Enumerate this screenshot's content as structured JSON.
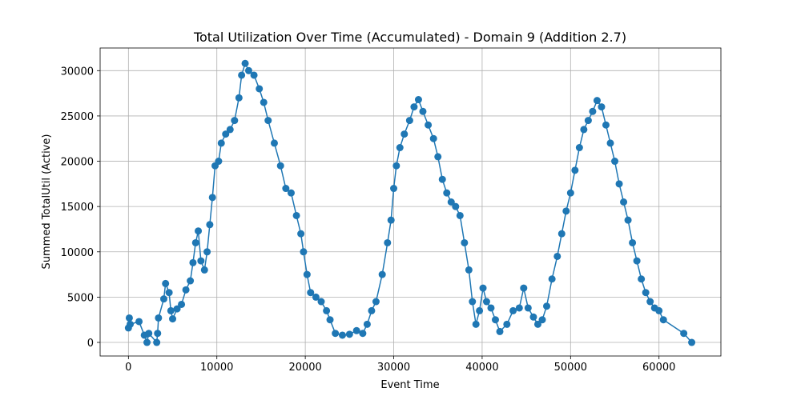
{
  "chart_data": {
    "type": "line",
    "title": "Total Utilization Over Time (Accumulated) - Domain 9 (Addition 2.7)",
    "xlabel": "Event Time",
    "ylabel": "Summed TotalUtil (Active)",
    "x": [
      0,
      100,
      200,
      1200,
      1800,
      2100,
      2300,
      3200,
      3300,
      3400,
      4000,
      4200,
      4600,
      4800,
      5000,
      5500,
      6000,
      6500,
      7000,
      7300,
      7600,
      7900,
      8200,
      8600,
      8900,
      9200,
      9500,
      9800,
      10200,
      10500,
      11000,
      11500,
      12000,
      12500,
      12800,
      13200,
      13600,
      14200,
      14800,
      15300,
      15800,
      16500,
      17200,
      17800,
      18400,
      19000,
      19500,
      19800,
      20200,
      20600,
      21200,
      21800,
      22400,
      22800,
      23400,
      24200,
      25000,
      25800,
      26500,
      27000,
      27500,
      28000,
      28700,
      29300,
      29700,
      30000,
      30300,
      30700,
      31200,
      31800,
      32300,
      32800,
      33300,
      33900,
      34500,
      35000,
      35500,
      36000,
      36500,
      37000,
      37500,
      38000,
      38500,
      38900,
      39300,
      39700,
      40100,
      40500,
      41000,
      41500,
      42000,
      42800,
      43500,
      44200,
      44700,
      45200,
      45800,
      46300,
      46800,
      47300,
      47900,
      48500,
      49000,
      49500,
      50000,
      50500,
      51000,
      51500,
      52000,
      52500,
      53000,
      53500,
      54000,
      54500,
      55000,
      55500,
      56000,
      56500,
      57000,
      57500,
      58000,
      58500,
      59000,
      59500,
      60000,
      60500,
      62800,
      63700
    ],
    "series": [
      {
        "name": "Summed TotalUtil (Active)",
        "color": "#1f77b4",
        "values": [
          1600,
          2700,
          2000,
          2300,
          800,
          0,
          1000,
          0,
          1000,
          2700,
          4800,
          6500,
          5500,
          3500,
          2600,
          3700,
          4200,
          5800,
          6800,
          8800,
          11000,
          12300,
          9000,
          8000,
          10000,
          13000,
          16000,
          19500,
          20000,
          22000,
          23000,
          23500,
          24500,
          27000,
          29500,
          30800,
          30000,
          29500,
          28000,
          26500,
          24500,
          22000,
          19500,
          17000,
          16500,
          14000,
          12000,
          10000,
          7500,
          5500,
          5000,
          4500,
          3500,
          2500,
          1000,
          800,
          900,
          1300,
          1000,
          2000,
          3500,
          4500,
          7500,
          11000,
          13500,
          17000,
          19500,
          21500,
          23000,
          24500,
          26000,
          26800,
          25500,
          24000,
          22500,
          20500,
          18000,
          16500,
          15500,
          15000,
          14000,
          11000,
          8000,
          4500,
          2000,
          3500,
          6000,
          4500,
          3800,
          2500,
          1200,
          2000,
          3500,
          3800,
          6000,
          3800,
          2800,
          2000,
          2500,
          4000,
          7000,
          9500,
          12000,
          14500,
          16500,
          19000,
          21500,
          23500,
          24500,
          25500,
          26700,
          26000,
          24000,
          22000,
          20000,
          17500,
          15500,
          13500,
          11000,
          9000,
          7000,
          5500,
          4500,
          3800,
          3500,
          2500,
          1000,
          0
        ]
      }
    ],
    "xlim": [
      -3200,
      67000
    ],
    "ylim": [
      -1500,
      32500
    ],
    "xticks": [
      0,
      10000,
      20000,
      30000,
      40000,
      50000,
      60000
    ],
    "yticks": [
      0,
      5000,
      10000,
      15000,
      20000,
      25000,
      30000
    ],
    "grid": true
  }
}
